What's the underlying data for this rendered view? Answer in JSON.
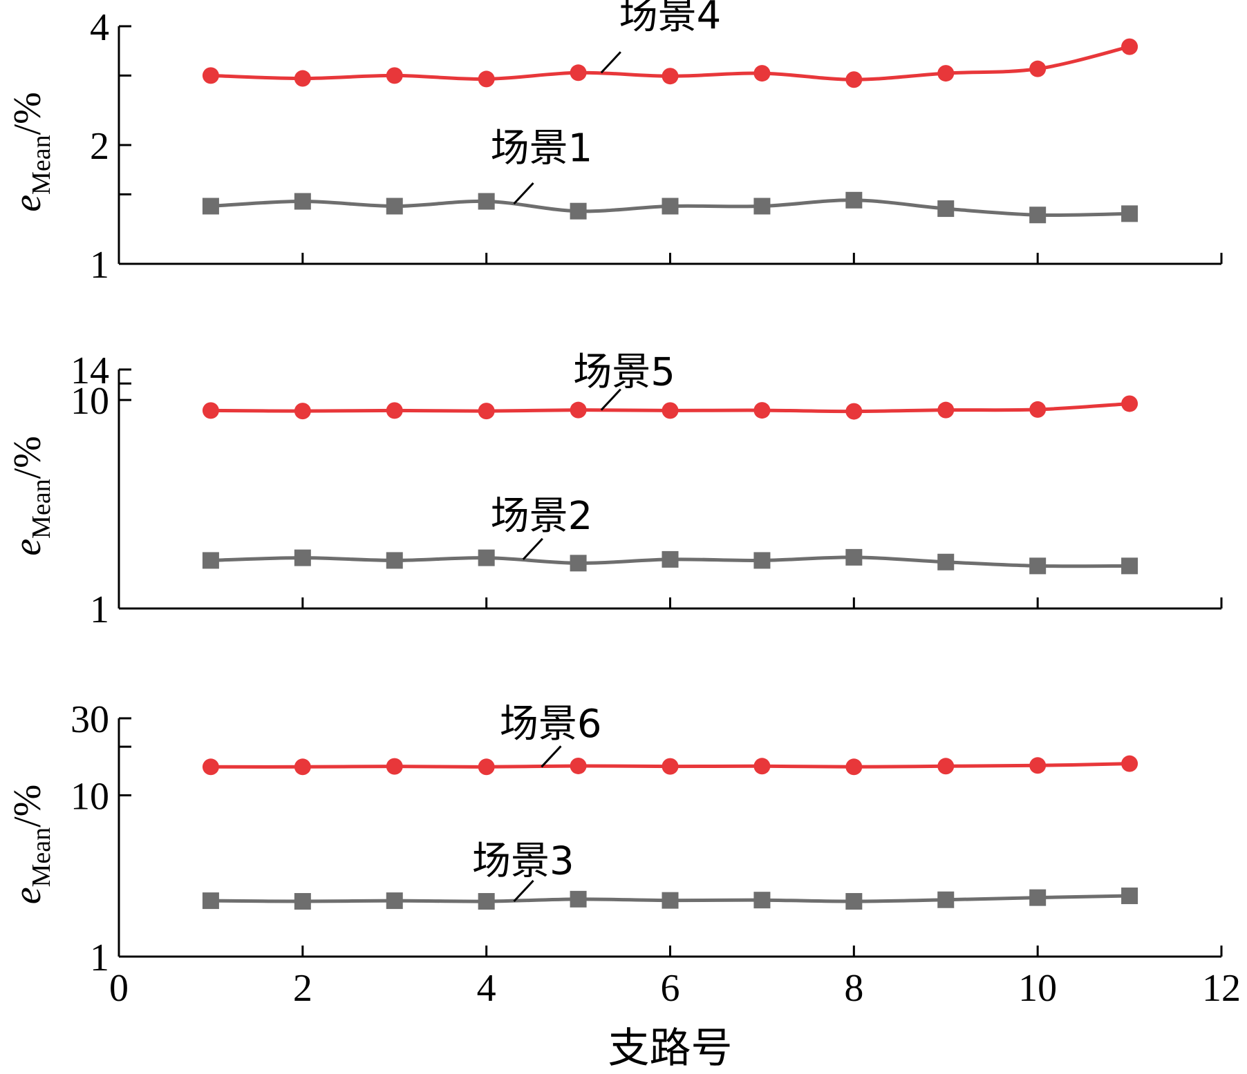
{
  "colors": {
    "red": "#e8373a",
    "gray": "#6e6e6e",
    "axis": "#000000"
  },
  "chart_data": [
    {
      "type": "line",
      "xlabel": "",
      "ylabel": {
        "var": "e",
        "sub": "Mean",
        "unit": "/%"
      },
      "xlim": [
        0,
        12
      ],
      "ylim": [
        1,
        4
      ],
      "yscale": "log",
      "y_ticks_major": [
        1,
        2,
        4
      ],
      "y_ticks_minor": [
        1.5,
        3
      ],
      "x": [
        1,
        2,
        3,
        4,
        5,
        6,
        7,
        8,
        9,
        10,
        11
      ],
      "series": [
        {
          "name": "场景4",
          "marker": "circle",
          "color": "red",
          "values": [
            3.0,
            2.95,
            3.0,
            2.94,
            3.05,
            2.99,
            3.04,
            2.93,
            3.04,
            3.12,
            3.55
          ],
          "label_anchor": [
            5.25,
            3.05
          ],
          "label_pos": [
            6.0,
            3.95
          ]
        },
        {
          "name": "场景1",
          "marker": "square",
          "color": "gray",
          "values": [
            1.4,
            1.44,
            1.4,
            1.44,
            1.36,
            1.4,
            1.4,
            1.45,
            1.38,
            1.33,
            1.34
          ],
          "label_anchor": [
            4.3,
            1.42
          ],
          "label_pos": [
            4.6,
            1.82
          ]
        }
      ]
    },
    {
      "type": "line",
      "xlabel": "",
      "ylabel": {
        "var": "e",
        "sub": "Mean",
        "unit": "/%"
      },
      "xlim": [
        0,
        12
      ],
      "ylim": [
        1,
        14
      ],
      "yscale": "log",
      "y_ticks_major": [
        1,
        10,
        14
      ],
      "y_ticks_minor": [
        12
      ],
      "x": [
        1,
        2,
        3,
        4,
        5,
        6,
        7,
        8,
        9,
        10,
        11
      ],
      "series": [
        {
          "name": "场景5",
          "marker": "circle",
          "color": "red",
          "values": [
            8.9,
            8.85,
            8.9,
            8.85,
            8.95,
            8.9,
            8.92,
            8.82,
            8.95,
            9.0,
            9.6
          ],
          "label_anchor": [
            5.25,
            8.95
          ],
          "label_pos": [
            5.5,
            11.8
          ]
        },
        {
          "name": "场景2",
          "marker": "square",
          "color": "gray",
          "values": [
            1.7,
            1.75,
            1.7,
            1.75,
            1.65,
            1.72,
            1.7,
            1.76,
            1.67,
            1.6,
            1.6
          ],
          "label_anchor": [
            4.4,
            1.72
          ],
          "label_pos": [
            4.6,
            2.4
          ]
        }
      ]
    },
    {
      "type": "line",
      "xlabel": "支路号",
      "ylabel": {
        "var": "e",
        "sub": "Mean",
        "unit": "/%"
      },
      "xlim": [
        0,
        12
      ],
      "ylim": [
        1,
        30
      ],
      "yscale": "log",
      "x_ticks": [
        0,
        2,
        4,
        6,
        8,
        10,
        12
      ],
      "y_ticks_major": [
        1,
        10,
        30
      ],
      "y_ticks_minor": [
        20
      ],
      "x": [
        1,
        2,
        3,
        4,
        5,
        6,
        7,
        8,
        9,
        10,
        11
      ],
      "series": [
        {
          "name": "场景6",
          "marker": "circle",
          "color": "red",
          "values": [
            15.0,
            15.0,
            15.1,
            15.0,
            15.2,
            15.1,
            15.15,
            15.0,
            15.15,
            15.3,
            15.7
          ],
          "label_anchor": [
            4.6,
            15.0
          ],
          "label_pos": [
            4.7,
            23.0
          ]
        },
        {
          "name": "场景3",
          "marker": "square",
          "color": "gray",
          "values": [
            2.22,
            2.2,
            2.22,
            2.2,
            2.27,
            2.23,
            2.24,
            2.2,
            2.25,
            2.32,
            2.38
          ],
          "label_anchor": [
            4.3,
            2.2
          ],
          "label_pos": [
            4.4,
            3.25
          ]
        }
      ]
    }
  ]
}
